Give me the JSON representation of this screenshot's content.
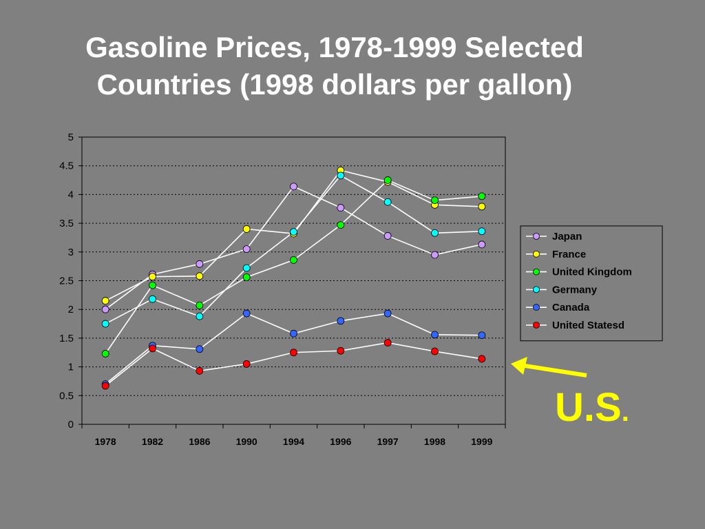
{
  "slide": {
    "title_line1": "Gasoline Prices, 1978-1999 Selected",
    "title_line2": "Countries (1998 dollars per gallon)",
    "annotation": "U.S",
    "annotation_suffix": ".",
    "annotation_color": "#ffff00",
    "background": "#808080"
  },
  "chart_data": {
    "type": "line",
    "title": "Gasoline Prices, 1978-1999 Selected Countries (1998 dollars per gallon)",
    "xlabel": "",
    "ylabel": "",
    "categories": [
      "1978",
      "1982",
      "1986",
      "1990",
      "1994",
      "1996",
      "1997",
      "1998",
      "1999"
    ],
    "yticks": [
      "0",
      "0.5",
      "1",
      "1.5",
      "2",
      "2.5",
      "3",
      "3.5",
      "4",
      "4.5",
      "5"
    ],
    "ylim": [
      0,
      5
    ],
    "grid": true,
    "legend_position": "right",
    "line_color": "#ffffff",
    "series": [
      {
        "name": "Japan",
        "color": "#cc99ff",
        "values": [
          2.0,
          2.61,
          2.79,
          3.05,
          4.14,
          3.77,
          3.28,
          2.95,
          3.13
        ]
      },
      {
        "name": "France",
        "color": "#ffff00",
        "values": [
          2.15,
          2.57,
          2.58,
          3.4,
          3.32,
          4.42,
          4.22,
          3.82,
          3.79
        ]
      },
      {
        "name": "United Kingdom",
        "color": "#00ff00",
        "values": [
          1.23,
          2.42,
          2.07,
          2.56,
          2.86,
          3.47,
          4.25,
          3.9,
          3.97
        ]
      },
      {
        "name": "Germany",
        "color": "#00ffff",
        "values": [
          1.75,
          2.18,
          1.88,
          2.72,
          3.35,
          4.33,
          3.87,
          3.33,
          3.36
        ]
      },
      {
        "name": "Canada",
        "color": "#3366ff",
        "values": [
          0.7,
          1.37,
          1.31,
          1.93,
          1.58,
          1.8,
          1.93,
          1.56,
          1.55
        ]
      },
      {
        "name": "United Statesd",
        "color": "#ff0000",
        "values": [
          0.67,
          1.32,
          0.93,
          1.05,
          1.25,
          1.28,
          1.42,
          1.27,
          1.14
        ]
      }
    ]
  }
}
